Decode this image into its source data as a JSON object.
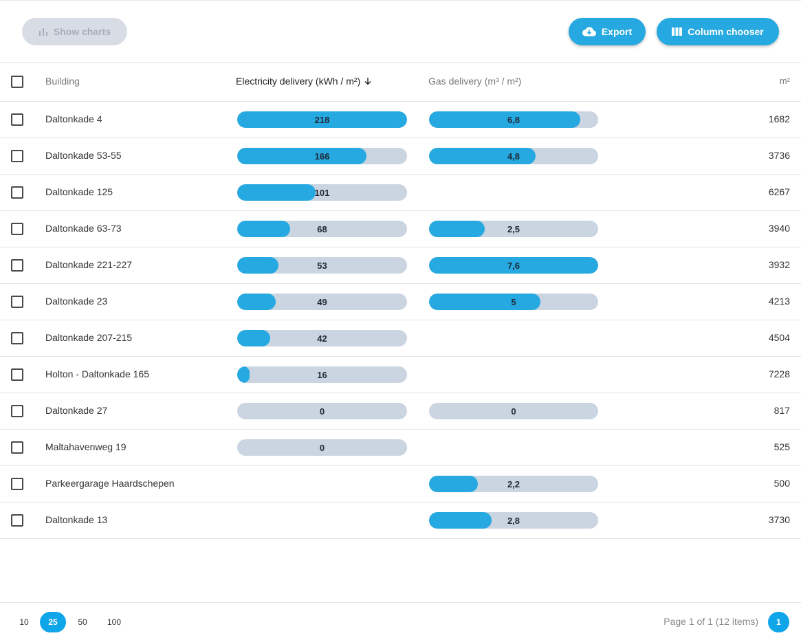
{
  "toolbar": {
    "show_charts_label": "Show charts",
    "export_label": "Export",
    "column_chooser_label": "Column chooser"
  },
  "grid": {
    "columns": {
      "building": "Building",
      "electricity": "Electricity delivery (kWh / m²)",
      "gas": "Gas delivery (m³ / m²)",
      "m2": "m²"
    },
    "sort": {
      "column": "electricity",
      "direction": "descending"
    },
    "electricity_max": 218,
    "gas_max": 7.6,
    "rows": [
      {
        "building": "Daltonkade 4",
        "electricity": 218,
        "electricity_label": "218",
        "gas": 6.8,
        "gas_label": "6,8",
        "m2": "1682"
      },
      {
        "building": "Daltonkade 53-55",
        "electricity": 166,
        "electricity_label": "166",
        "gas": 4.8,
        "gas_label": "4,8",
        "m2": "3736"
      },
      {
        "building": "Daltonkade 125",
        "electricity": 101,
        "electricity_label": "101",
        "gas": null,
        "gas_label": null,
        "m2": "6267"
      },
      {
        "building": "Daltonkade 63-73",
        "electricity": 68,
        "electricity_label": "68",
        "gas": 2.5,
        "gas_label": "2,5",
        "m2": "3940"
      },
      {
        "building": "Daltonkade 221-227",
        "electricity": 53,
        "electricity_label": "53",
        "gas": 7.6,
        "gas_label": "7,6",
        "m2": "3932"
      },
      {
        "building": "Daltonkade 23",
        "electricity": 49,
        "electricity_label": "49",
        "gas": 5,
        "gas_label": "5",
        "m2": "4213"
      },
      {
        "building": "Daltonkade 207-215",
        "electricity": 42,
        "electricity_label": "42",
        "gas": null,
        "gas_label": null,
        "m2": "4504"
      },
      {
        "building": "Holton - Daltonkade 165",
        "electricity": 16,
        "electricity_label": "16",
        "gas": null,
        "gas_label": null,
        "m2": "7228"
      },
      {
        "building": "Daltonkade 27",
        "electricity": 0,
        "electricity_label": "0",
        "gas": 0,
        "gas_label": "0",
        "m2": "817"
      },
      {
        "building": "Maltahavenweg 19",
        "electricity": 0,
        "electricity_label": "0",
        "gas": null,
        "gas_label": null,
        "m2": "525"
      },
      {
        "building": "Parkeergarage Haardschepen",
        "electricity": null,
        "electricity_label": null,
        "gas": 2.2,
        "gas_label": "2,2",
        "m2": "500"
      },
      {
        "building": "Daltonkade 13",
        "electricity": null,
        "electricity_label": null,
        "gas": 2.8,
        "gas_label": "2,8",
        "m2": "3730"
      }
    ]
  },
  "footer": {
    "page_sizes": [
      "10",
      "25",
      "50",
      "100"
    ],
    "selected_page_size": "25",
    "page_info": "Page 1 of 1 (12 items)",
    "current_page": "1"
  },
  "colors": {
    "accent": "#26a9e0",
    "bar_track": "#cbd5e1",
    "pager_active": "#0ea5e9",
    "disabled_button": "#d8dde5"
  },
  "icons": {
    "show_charts": "bar-chart-icon",
    "export": "cloud-download-icon",
    "column_chooser": "columns-icon",
    "sort": "arrow-down-icon"
  }
}
